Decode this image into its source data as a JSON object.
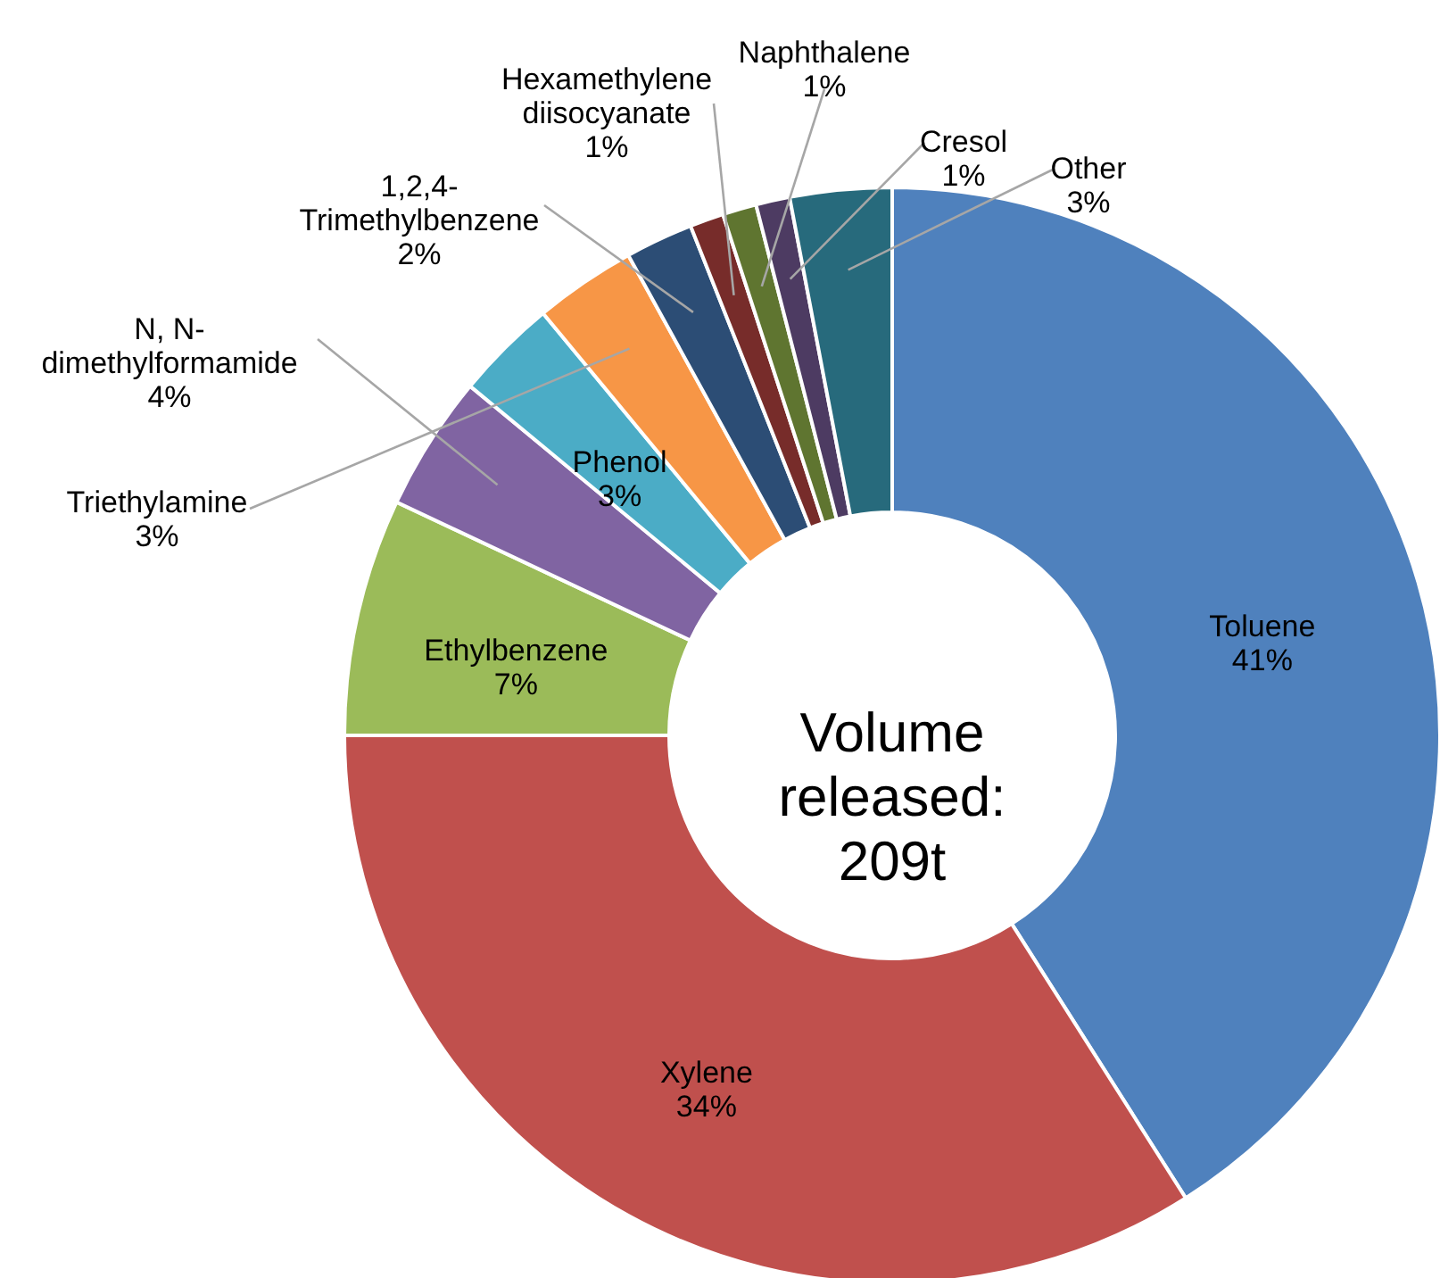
{
  "chart_data": {
    "type": "donut",
    "categories": [
      "Toluene",
      "Xylene",
      "Ethylbenzene",
      "N, N-dimethylformamide",
      "Phenol",
      "Triethylamine",
      "1,2,4-Trimethylbenzene",
      "Hexamethylene diisocyanate",
      "Naphthalene",
      "Cresol",
      "Other"
    ],
    "values": [
      41,
      34,
      7,
      4,
      3,
      3,
      2,
      1,
      1,
      1,
      3
    ],
    "value_labels": [
      "41%",
      "34%",
      "7%",
      "4%",
      "3%",
      "3%",
      "2%",
      "1%",
      "1%",
      "1%",
      "3%"
    ],
    "colors": [
      "#4f81bd",
      "#c0504d",
      "#9bbb59",
      "#8064a2",
      "#4bacc6",
      "#f79646",
      "#2c4d75",
      "#772c2a",
      "#5f7530",
      "#4d3b62",
      "#276a7c"
    ],
    "annotations": [
      "Volume released: 209t"
    ]
  }
}
